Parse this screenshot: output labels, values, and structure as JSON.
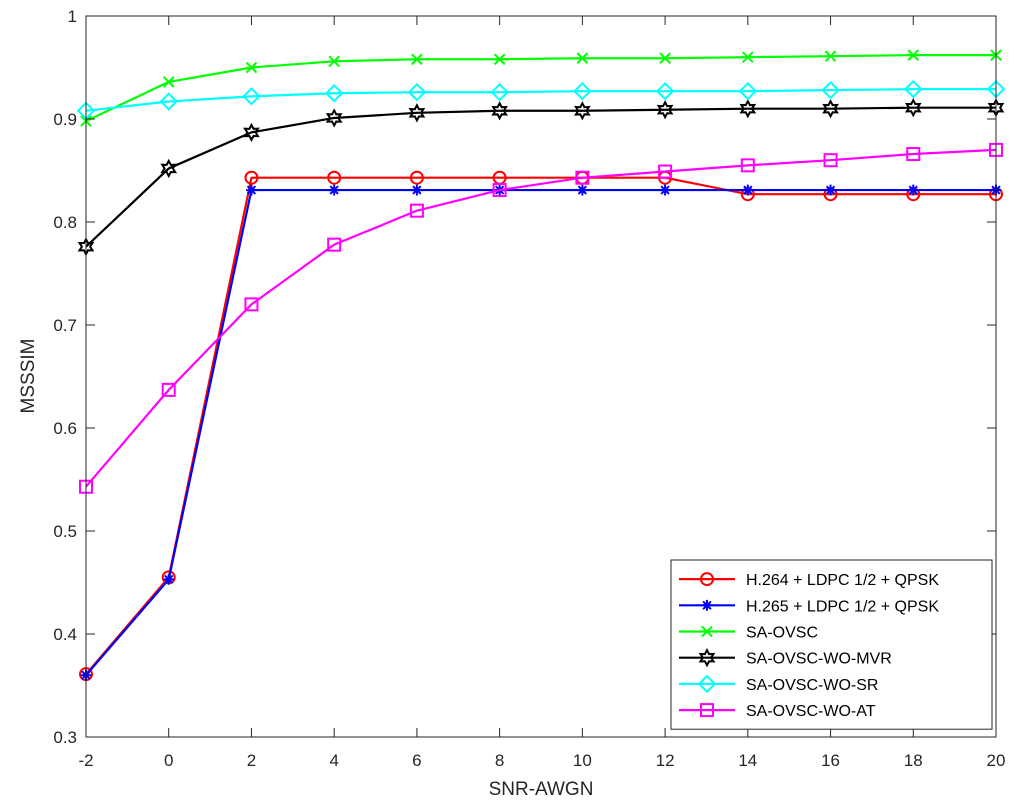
{
  "chart_data": {
    "type": "line",
    "title": "",
    "xlabel": "SNR-AWGN",
    "ylabel": "MSSSIM",
    "x": [
      -2,
      0,
      2,
      4,
      6,
      8,
      10,
      12,
      14,
      16,
      18,
      20
    ],
    "xlim": [
      -2,
      20
    ],
    "ylim": [
      0.3,
      1
    ],
    "xticks": [
      -2,
      0,
      2,
      4,
      6,
      8,
      10,
      12,
      14,
      16,
      18,
      20
    ],
    "yticks": [
      0.3,
      0.4,
      0.5,
      0.6,
      0.7,
      0.8,
      0.9,
      1
    ],
    "xtick_labels": [
      "-2",
      "0",
      "2",
      "4",
      "6",
      "8",
      "10",
      "12",
      "14",
      "16",
      "18",
      "20"
    ],
    "ytick_labels": [
      "0.3",
      "0.4",
      "0.5",
      "0.6",
      "0.7",
      "0.8",
      "0.9",
      "1"
    ],
    "grid": false,
    "legend_position": "bottom-right",
    "series": [
      {
        "name": "H.264 + LDPC 1/2 + QPSK",
        "color": "#ff0000",
        "marker": "circle",
        "values": [
          0.361,
          0.455,
          0.843,
          0.843,
          0.843,
          0.843,
          0.843,
          0.843,
          0.827,
          0.827,
          0.827,
          0.827
        ]
      },
      {
        "name": "H.265 + LDPC 1/2 + QPSK",
        "color": "#0000ff",
        "marker": "asterisk",
        "values": [
          0.36,
          0.453,
          0.831,
          0.831,
          0.831,
          0.831,
          0.831,
          0.831,
          0.831,
          0.831,
          0.831,
          0.831
        ]
      },
      {
        "name": "SA-OVSC",
        "color": "#00ff00",
        "marker": "x",
        "values": [
          0.898,
          0.936,
          0.95,
          0.956,
          0.958,
          0.958,
          0.959,
          0.959,
          0.96,
          0.961,
          0.962,
          0.962
        ]
      },
      {
        "name": "SA-OVSC-WO-MVR",
        "color": "#000000",
        "marker": "hexagram",
        "values": [
          0.776,
          0.852,
          0.887,
          0.901,
          0.906,
          0.908,
          0.908,
          0.909,
          0.91,
          0.91,
          0.911,
          0.911
        ]
      },
      {
        "name": "SA-OVSC-WO-SR",
        "color": "#00ffff",
        "marker": "diamond",
        "values": [
          0.908,
          0.917,
          0.922,
          0.925,
          0.926,
          0.926,
          0.927,
          0.927,
          0.927,
          0.928,
          0.929,
          0.929
        ]
      },
      {
        "name": "SA-OVSC-WO-AT",
        "color": "#ff00ff",
        "marker": "square",
        "values": [
          0.543,
          0.637,
          0.72,
          0.778,
          0.811,
          0.831,
          0.843,
          0.849,
          0.855,
          0.86,
          0.866,
          0.87
        ]
      }
    ]
  }
}
